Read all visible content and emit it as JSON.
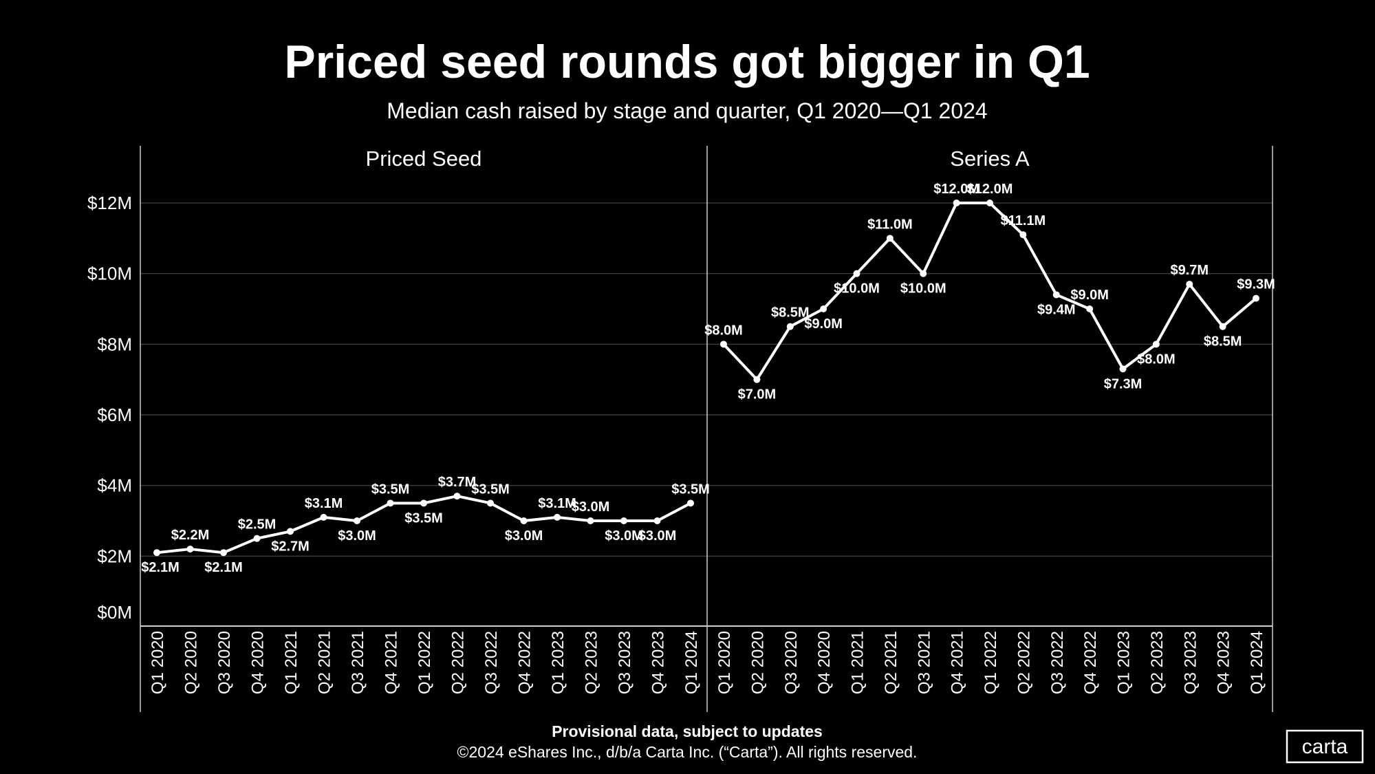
{
  "title": "Priced seed rounds got bigger in Q1",
  "subtitle": "Median cash raised by stage and quarter, Q1 2020—Q1 2024",
  "footer": {
    "note": "Provisional data, subject to updates",
    "copyright": "©2024 eShares Inc., d/b/a Carta Inc. (“Carta”). All rights reserved."
  },
  "logo": "carta",
  "colors": {
    "background": "#000000",
    "line": "#ffffff",
    "grid": "#3a3a3a",
    "text": "#ffffff"
  },
  "chart_data": {
    "type": "line",
    "title": "Priced seed rounds got bigger in Q1",
    "ylabel": "",
    "xlabel": "",
    "ylim": [
      0,
      13
    ],
    "yticks": [
      0,
      2,
      4,
      6,
      8,
      10,
      12
    ],
    "ytick_labels": [
      "$0M",
      "$2M",
      "$4M",
      "$6M",
      "$8M",
      "$10M",
      "$12M"
    ],
    "categories": [
      "Q1 2020",
      "Q2 2020",
      "Q3 2020",
      "Q4 2020",
      "Q1 2021",
      "Q2 2021",
      "Q3 2021",
      "Q4 2021",
      "Q1 2022",
      "Q2 2022",
      "Q3 2022",
      "Q4 2022",
      "Q1 2023",
      "Q2 2023",
      "Q3 2023",
      "Q4 2023",
      "Q1 2024"
    ],
    "grid": true,
    "panels": [
      {
        "name": "Priced Seed",
        "values": [
          2.1,
          2.2,
          2.1,
          2.5,
          2.7,
          3.1,
          3.0,
          3.5,
          3.5,
          3.7,
          3.5,
          3.0,
          3.1,
          3.0,
          3.0,
          3.0,
          3.5
        ],
        "labels": [
          "$2.1M",
          "$2.2M",
          "$2.1M",
          "$2.5M",
          "$2.7M",
          "$3.1M",
          "$3.0M",
          "$3.5M",
          "$3.5M",
          "$3.7M",
          "$3.5M",
          "$3.0M",
          "$3.1M",
          "$3.0M",
          "$3.0M",
          "$3.0M",
          "$3.5M"
        ],
        "label_positions": [
          "below",
          "above",
          "below",
          "above",
          "below",
          "above",
          "below",
          "above",
          "below",
          "above",
          "above",
          "below",
          "above",
          "above",
          "below",
          "below",
          "above"
        ]
      },
      {
        "name": "Series A",
        "values": [
          8.0,
          7.0,
          8.5,
          9.0,
          10.0,
          11.0,
          10.0,
          12.0,
          12.0,
          11.1,
          9.4,
          9.0,
          7.3,
          8.0,
          9.7,
          8.5,
          9.3
        ],
        "labels": [
          "$8.0M",
          "$7.0M",
          "$8.5M",
          "$9.0M",
          "$10.0M",
          "$11.0M",
          "$10.0M",
          "$12.0M",
          "$12.0M",
          "$11.1M",
          "$9.4M",
          "$9.0M",
          "$7.3M",
          "$8.0M",
          "$9.7M",
          "$8.5M",
          "$9.3M"
        ],
        "label_positions": [
          "above",
          "below",
          "above",
          "below",
          "below",
          "above",
          "below",
          "above",
          "above",
          "above",
          "below",
          "above",
          "below",
          "below",
          "above",
          "below",
          "above"
        ]
      }
    ]
  }
}
